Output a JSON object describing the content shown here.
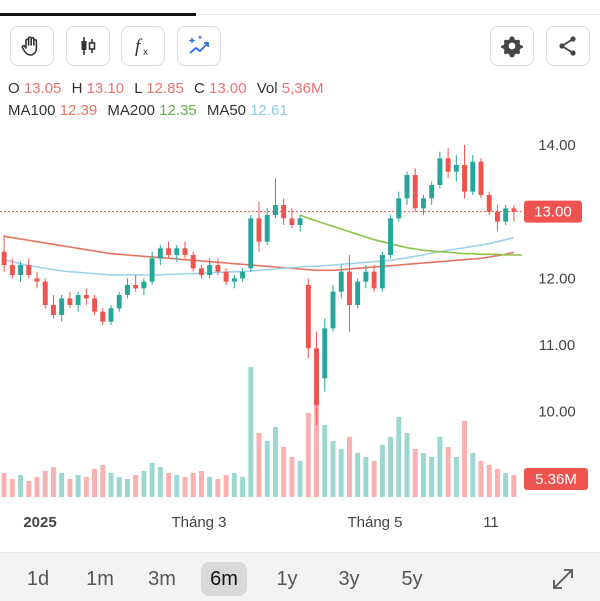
{
  "legend": {
    "open_label": "O",
    "open": "13.05",
    "high_label": "H",
    "high": "13.10",
    "low_label": "L",
    "low": "12.85",
    "close_label": "C",
    "close": "13.00",
    "vol_label": "Vol",
    "vol": "5,36M",
    "ma100_label": "MA100",
    "ma100": "12.39",
    "ma200_label": "MA200",
    "ma200": "12.35",
    "ma50_label": "MA50",
    "ma50": "12.61"
  },
  "colors": {
    "up": "#26a69a",
    "down": "#ef5350",
    "ma100": "#e57360",
    "ma200": "#8bc34a",
    "ma50": "#9fd3ea",
    "last_price": "#ef5350"
  },
  "toolbar": {
    "left": [
      "hand-draw-icon",
      "candlestick-icon",
      "function-icon",
      "magic-icon"
    ],
    "right": [
      "settings-icon",
      "share-icon"
    ]
  },
  "chart_data": {
    "type": "candlestick",
    "ylim": [
      9.5,
      14.3
    ],
    "y_ticks": [
      "14.00",
      "12.00",
      "11.00",
      "10.00"
    ],
    "x_ticks": [
      "2025",
      "Tháng 3",
      "Tháng 5",
      "11"
    ],
    "last_price": 13.0,
    "last_price_label": "13.00",
    "last_volume_label": "5.36M",
    "ohlc": [
      [
        12.4,
        12.65,
        12.1,
        12.2
      ],
      [
        12.2,
        12.3,
        12.0,
        12.05
      ],
      [
        12.05,
        12.25,
        11.95,
        12.2
      ],
      [
        12.2,
        12.3,
        12.0,
        12.05
      ],
      [
        12.0,
        12.1,
        11.85,
        11.95
      ],
      [
        11.95,
        12.0,
        11.55,
        11.6
      ],
      [
        11.6,
        11.75,
        11.4,
        11.45
      ],
      [
        11.45,
        11.75,
        11.35,
        11.7
      ],
      [
        11.7,
        11.8,
        11.55,
        11.6
      ],
      [
        11.6,
        11.8,
        11.5,
        11.75
      ],
      [
        11.75,
        11.85,
        11.6,
        11.7
      ],
      [
        11.7,
        11.75,
        11.45,
        11.5
      ],
      [
        11.5,
        11.55,
        11.3,
        11.35
      ],
      [
        11.35,
        11.6,
        11.3,
        11.55
      ],
      [
        11.55,
        11.8,
        11.5,
        11.75
      ],
      [
        11.75,
        12.0,
        11.7,
        11.9
      ],
      [
        11.9,
        12.05,
        11.8,
        11.85
      ],
      [
        11.85,
        12.0,
        11.75,
        11.95
      ],
      [
        11.95,
        12.4,
        11.9,
        12.3
      ],
      [
        12.3,
        12.5,
        12.2,
        12.45
      ],
      [
        12.45,
        12.55,
        12.3,
        12.35
      ],
      [
        12.35,
        12.5,
        12.25,
        12.45
      ],
      [
        12.45,
        12.55,
        12.3,
        12.35
      ],
      [
        12.35,
        12.4,
        12.1,
        12.15
      ],
      [
        12.15,
        12.2,
        12.0,
        12.05
      ],
      [
        12.05,
        12.3,
        12.0,
        12.2
      ],
      [
        12.2,
        12.3,
        12.05,
        12.1
      ],
      [
        12.1,
        12.15,
        11.9,
        11.95
      ],
      [
        11.95,
        12.05,
        11.85,
        12.0
      ],
      [
        12.0,
        12.15,
        11.95,
        12.1
      ],
      [
        12.15,
        12.95,
        12.1,
        12.9
      ],
      [
        12.9,
        13.15,
        12.4,
        12.55
      ],
      [
        12.55,
        13.05,
        12.5,
        12.95
      ],
      [
        12.95,
        13.5,
        12.9,
        13.1
      ],
      [
        13.1,
        13.2,
        12.8,
        12.9
      ],
      [
        12.9,
        13.05,
        12.75,
        12.8
      ],
      [
        12.8,
        12.95,
        12.7,
        12.9
      ],
      [
        11.9,
        12.0,
        10.8,
        10.95
      ],
      [
        10.95,
        11.2,
        9.8,
        10.1
      ],
      [
        10.5,
        11.4,
        10.3,
        11.25
      ],
      [
        11.25,
        11.9,
        11.2,
        11.8
      ],
      [
        11.8,
        12.2,
        11.7,
        12.1
      ],
      [
        12.1,
        12.35,
        11.2,
        11.6
      ],
      [
        11.6,
        12.0,
        11.55,
        11.95
      ],
      [
        11.95,
        12.2,
        11.85,
        12.1
      ],
      [
        12.1,
        12.2,
        11.8,
        11.85
      ],
      [
        11.85,
        12.4,
        11.8,
        12.35
      ],
      [
        12.35,
        12.95,
        12.3,
        12.9
      ],
      [
        12.9,
        13.3,
        12.85,
        13.2
      ],
      [
        13.2,
        13.6,
        13.1,
        13.55
      ],
      [
        13.55,
        13.65,
        13.0,
        13.05
      ],
      [
        13.05,
        13.25,
        12.95,
        13.2
      ],
      [
        13.2,
        13.45,
        13.1,
        13.4
      ],
      [
        13.4,
        13.9,
        13.35,
        13.8
      ],
      [
        13.8,
        13.95,
        13.5,
        13.6
      ],
      [
        13.6,
        13.85,
        13.45,
        13.7
      ],
      [
        13.7,
        14.0,
        13.2,
        13.3
      ],
      [
        13.3,
        13.85,
        13.25,
        13.75
      ],
      [
        13.75,
        13.8,
        13.2,
        13.25
      ],
      [
        13.25,
        13.3,
        12.95,
        13.0
      ],
      [
        13.0,
        13.1,
        12.7,
        12.85
      ],
      [
        12.85,
        13.1,
        12.8,
        13.05
      ],
      [
        13.05,
        13.1,
        12.85,
        13.0
      ]
    ],
    "volume": [
      1.2,
      0.9,
      1.1,
      0.8,
      1.0,
      1.3,
      1.5,
      1.2,
      0.9,
      1.1,
      1.0,
      1.4,
      1.6,
      1.2,
      1.0,
      0.9,
      1.1,
      1.3,
      1.7,
      1.5,
      1.2,
      1.1,
      1.0,
      1.2,
      1.3,
      1.0,
      0.9,
      1.1,
      1.2,
      1.0,
      6.5,
      3.2,
      2.8,
      3.5,
      2.5,
      2.0,
      1.8,
      4.2,
      5.0,
      3.6,
      2.8,
      2.4,
      3.0,
      2.2,
      2.0,
      1.8,
      2.6,
      3.0,
      4.0,
      3.2,
      2.4,
      2.2,
      2.0,
      3.0,
      2.5,
      2.0,
      3.8,
      2.2,
      1.8,
      1.6,
      1.4,
      1.2,
      1.1
    ],
    "ma100": [
      12.63,
      12.61,
      12.59,
      12.57,
      12.55,
      12.53,
      12.51,
      12.49,
      12.47,
      12.45,
      12.43,
      12.41,
      12.39,
      12.37,
      12.36,
      12.35,
      12.34,
      12.33,
      12.32,
      12.31,
      12.3,
      12.29,
      12.28,
      12.27,
      12.26,
      12.25,
      12.24,
      12.23,
      12.22,
      12.21,
      12.2,
      12.19,
      12.18,
      12.17,
      12.16,
      12.15,
      12.14,
      12.13,
      12.12,
      12.12,
      12.12,
      12.13,
      12.14,
      12.15,
      12.16,
      12.17,
      12.18,
      12.19,
      12.2,
      12.21,
      12.22,
      12.23,
      12.24,
      12.25,
      12.26,
      12.27,
      12.28,
      12.29,
      12.3,
      12.32,
      12.34,
      12.36,
      12.39
    ],
    "ma200_start": 36,
    "ma200": [
      12.95,
      12.9,
      12.86,
      12.82,
      12.78,
      12.74,
      12.7,
      12.66,
      12.62,
      12.58,
      12.55,
      12.52,
      12.49,
      12.46,
      12.44,
      12.42,
      12.41,
      12.4,
      12.39,
      12.38,
      12.37,
      12.37,
      12.36,
      12.36,
      12.36,
      12.35,
      12.35,
      12.35
    ],
    "ma50": [
      12.28,
      12.25,
      12.22,
      12.19,
      12.17,
      12.15,
      12.13,
      12.11,
      12.1,
      12.09,
      12.08,
      12.07,
      12.06,
      12.05,
      12.05,
      12.05,
      12.05,
      12.05,
      12.05,
      12.05,
      12.06,
      12.06,
      12.07,
      12.07,
      12.08,
      12.08,
      12.09,
      12.09,
      12.1,
      12.1,
      12.11,
      12.12,
      12.13,
      12.14,
      12.15,
      12.16,
      12.17,
      12.18,
      12.18,
      12.19,
      12.2,
      12.21,
      12.22,
      12.23,
      12.24,
      12.25,
      12.26,
      12.27,
      12.29,
      12.31,
      12.33,
      12.35,
      12.38,
      12.4,
      12.42,
      12.44,
      12.46,
      12.48,
      12.5,
      12.52,
      12.55,
      12.58,
      12.61
    ]
  },
  "timeframes": {
    "items": [
      "1d",
      "1m",
      "3m",
      "6m",
      "1y",
      "3y",
      "5y"
    ],
    "selected": "6m"
  }
}
